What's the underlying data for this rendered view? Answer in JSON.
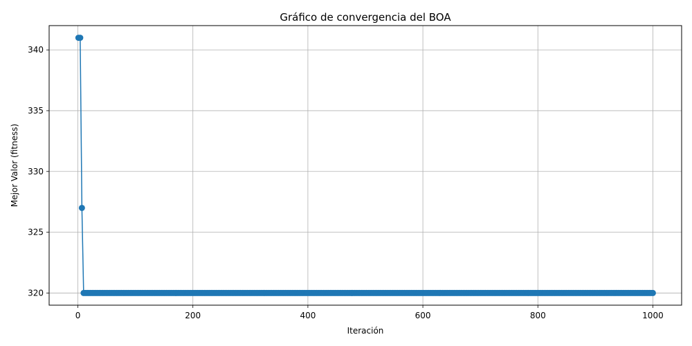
{
  "chart_data": {
    "type": "line",
    "title": "Gráfico de convergencia del BOA",
    "xlabel": "Iteración",
    "ylabel": "Mejor Valor (fitness)",
    "xlim": [
      -50,
      1050
    ],
    "ylim": [
      319,
      342
    ],
    "xticks": [
      0,
      200,
      400,
      600,
      800,
      1000
    ],
    "yticks": [
      320,
      325,
      330,
      335,
      340
    ],
    "grid": true,
    "series": [
      {
        "color": "#1f77b4",
        "marker": "circle",
        "x_start": 1,
        "x_end": 1000,
        "x_step": 3,
        "steps": [
          {
            "from": 1,
            "to": 6,
            "value": 341
          },
          {
            "from": 7,
            "to": 9,
            "value": 327
          },
          {
            "from": 10,
            "to": 1000,
            "value": 320
          }
        ]
      }
    ]
  }
}
